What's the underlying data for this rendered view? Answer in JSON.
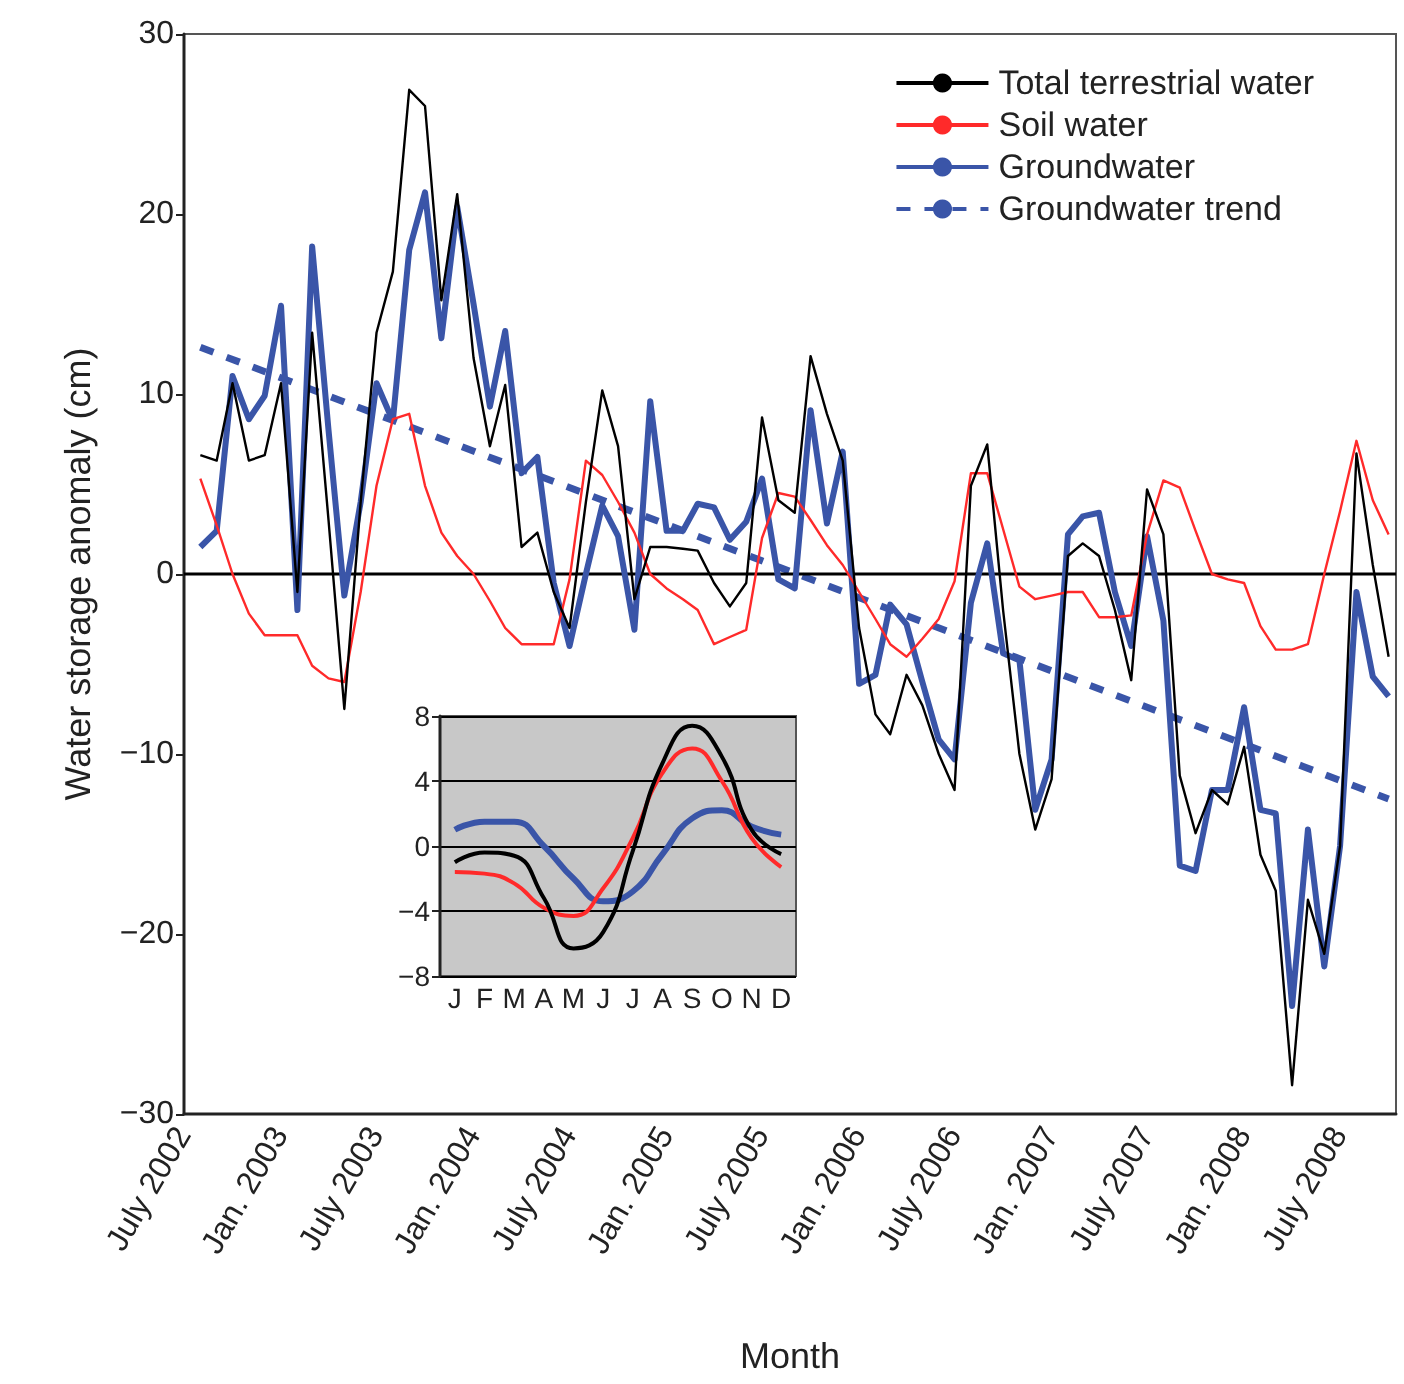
{
  "chart_data": [
    {
      "type": "line",
      "xlabel": "Month",
      "ylabel": "Water storage anomaly (cm)",
      "x": [
        "2002-08",
        "2002-09",
        "2002-10",
        "2002-11",
        "2002-12",
        "2003-01",
        "2003-02",
        "2003-03",
        "2003-04",
        "2003-05",
        "2003-06",
        "2003-07",
        "2003-08",
        "2003-09",
        "2003-10",
        "2003-11",
        "2003-12",
        "2004-01",
        "2004-02",
        "2004-03",
        "2004-04",
        "2004-05",
        "2004-06",
        "2004-07",
        "2004-08",
        "2004-09",
        "2004-10",
        "2004-11",
        "2004-12",
        "2005-01",
        "2005-02",
        "2005-03",
        "2005-04",
        "2005-05",
        "2005-06",
        "2005-07",
        "2005-08",
        "2005-09",
        "2005-10",
        "2005-11",
        "2005-12",
        "2006-01",
        "2006-02",
        "2006-03",
        "2006-04",
        "2006-05",
        "2006-06",
        "2006-07",
        "2006-08",
        "2006-09",
        "2006-10",
        "2006-11",
        "2006-12",
        "2007-01",
        "2007-02",
        "2007-03",
        "2007-04",
        "2007-05",
        "2007-06",
        "2007-07",
        "2007-08",
        "2007-09",
        "2007-10",
        "2007-11",
        "2007-12",
        "2008-01",
        "2008-02",
        "2008-03",
        "2008-04",
        "2008-05",
        "2008-06",
        "2008-07",
        "2008-08",
        "2008-09",
        "2008-10"
      ],
      "series": [
        {
          "name": "Total terrestrial water",
          "color": "#000000",
          "values": [
            6.6,
            6.3,
            10.6,
            6.3,
            6.6,
            10.6,
            -1,
            13.4,
            3,
            -7.5,
            4,
            13.4,
            16.8,
            26.9,
            26.0,
            15.2,
            21.1,
            12,
            7.1,
            10.5,
            1.5,
            2.3,
            -1,
            -3,
            4,
            10.2,
            7.1,
            -1.4,
            1.5,
            1.5,
            1.4,
            1.3,
            -0.5,
            -1.8,
            -0.5,
            8.7,
            4.1,
            3.4,
            12.1,
            8.9,
            6.3,
            -3,
            -7.8,
            -8.9,
            -5.6,
            -7.3,
            -10,
            -12,
            4.9,
            7.2,
            -2,
            -10,
            -14.2,
            -11.4,
            1,
            1.7,
            1,
            -2,
            -5.9,
            4.7,
            2.2,
            -11.2,
            -14.4,
            -12,
            -12.8,
            -9.6,
            -15.6,
            -17.6,
            -28.4,
            -18.1,
            -21.1,
            -15.1,
            6.7,
            0.5,
            -4.6
          ]
        },
        {
          "name": "Soil water",
          "color": "#ff2a2a",
          "values": [
            5.3,
            2.7,
            0,
            -2.2,
            -3.4,
            -3.4,
            -3.4,
            -5.1,
            -5.8,
            -6,
            -1,
            4.9,
            8.6,
            8.9,
            4.9,
            2.3,
            1,
            0,
            -1.5,
            -3,
            -3.9,
            -3.9,
            -3.9,
            -0.3,
            6.3,
            5.5,
            4,
            2.3,
            0,
            -0.8,
            -1.4,
            -2,
            -3.9,
            -3.5,
            -3.1,
            2,
            4.5,
            4.3,
            3,
            1.6,
            0.5,
            -1,
            -2.5,
            -3.9,
            -4.6,
            -3.6,
            -2.5,
            -0.4,
            5.6,
            5.6,
            2.5,
            -0.7,
            -1.4,
            -1.2,
            -1,
            -1,
            -2.4,
            -2.4,
            -2.3,
            2.2,
            5.2,
            4.8,
            2.4,
            0,
            -0.3,
            -0.5,
            -2.9,
            -4.2,
            -4.2,
            -3.9,
            0,
            3.5,
            7.4,
            4.1,
            2.2
          ]
        },
        {
          "name": "Groundwater",
          "color": "#3a55a8",
          "values": [
            1.5,
            2.4,
            11,
            8.6,
            9.9,
            14.9,
            -2,
            18.2,
            8,
            -1.2,
            4,
            10.6,
            8.5,
            18,
            21.2,
            13.1,
            20.4,
            15,
            9.3,
            13.5,
            5.6,
            6.5,
            -0.5,
            -4,
            0,
            3.8,
            2.1,
            -3.1,
            9.6,
            2.4,
            2.4,
            3.9,
            3.7,
            1.9,
            2.9,
            5.3,
            -0.3,
            -0.8,
            9.1,
            2.8,
            6.8,
            -6.1,
            -5.6,
            -1.7,
            -2.8,
            -6,
            -9.2,
            -10.3,
            -1.6,
            1.7,
            -4.4,
            -4.8,
            -13.1,
            -10.3,
            2.2,
            3.2,
            3.4,
            -1,
            -4,
            2.1,
            -2.6,
            -16.2,
            -16.5,
            -12,
            -12,
            -7.4,
            -13.1,
            -13.3,
            -24,
            -14.2,
            -21.8,
            -15.1,
            -1,
            -5.7,
            -6.8
          ]
        },
        {
          "name": "Groundwater trend",
          "color": "#3a55a8",
          "line_style": "dashed",
          "x": [
            "2002-08",
            "2008-10"
          ],
          "values": [
            12.6,
            -12.5
          ]
        }
      ],
      "xlim": [
        "2002-07",
        "2008-10-15"
      ],
      "xticks": [
        {
          "value": "2002-07",
          "label": "July 2002"
        },
        {
          "value": "2003-01",
          "label": "Jan. 2003"
        },
        {
          "value": "2003-07",
          "label": "July 2003"
        },
        {
          "value": "2004-01",
          "label": "Jan. 2004"
        },
        {
          "value": "2004-07",
          "label": "July 2004"
        },
        {
          "value": "2005-01",
          "label": "Jan. 2005"
        },
        {
          "value": "2005-07",
          "label": "July 2005"
        },
        {
          "value": "2006-01",
          "label": "Jan. 2006"
        },
        {
          "value": "2006-07",
          "label": "July 2006"
        },
        {
          "value": "2007-01",
          "label": "Jan. 2007"
        },
        {
          "value": "2007-07",
          "label": "July 2007"
        },
        {
          "value": "2008-01",
          "label": "Jan. 2008"
        },
        {
          "value": "2008-07",
          "label": "July 2008"
        }
      ],
      "ylim": [
        -30,
        30
      ],
      "yticks": [
        -30,
        -20,
        -10,
        0,
        10,
        20,
        30
      ],
      "ref_lines": [
        {
          "axis": "y",
          "value": 0,
          "color": "#000000"
        }
      ],
      "legend": "top right",
      "marker": "none",
      "grid": false
    },
    {
      "type": "line",
      "categories": [
        "J",
        "F",
        "M",
        "A",
        "M",
        "J",
        "J",
        "A",
        "S",
        "O",
        "N",
        "D"
      ],
      "series": [
        {
          "color": "#000000",
          "values": [
            -1.0,
            -0.4,
            -0.6,
            -3.2,
            -6.3,
            -5.3,
            -0.3,
            5.1,
            7.4,
            5.5,
            1,
            -0.5
          ]
        },
        {
          "color": "#ff2a2a",
          "values": [
            -1.6,
            -1.7,
            -2.3,
            -3.8,
            -4.3,
            -2.6,
            0.5,
            4.5,
            6,
            4,
            0.5,
            -1.3
          ]
        },
        {
          "color": "#3a55a8",
          "values": [
            1,
            1.5,
            1.5,
            0,
            -2,
            -3.4,
            -2.8,
            -0.5,
            1.7,
            2.2,
            1.2,
            0.7
          ]
        }
      ],
      "ylim": [
        -8,
        8
      ],
      "yticks": [
        -8,
        -4,
        0,
        4,
        8
      ],
      "grid": "y",
      "marker": "none"
    }
  ]
}
